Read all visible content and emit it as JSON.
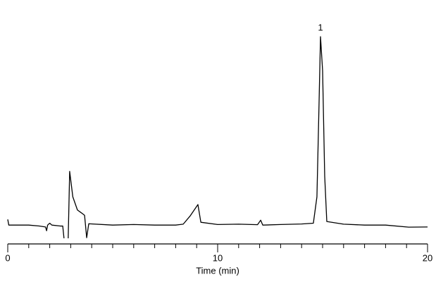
{
  "chart_data": {
    "type": "line",
    "x_label": "Time (min)",
    "xlim": [
      0,
      20
    ],
    "xticks": [
      0,
      10,
      20
    ],
    "xminorticks": [
      0,
      1,
      2,
      3,
      4,
      5,
      6,
      7,
      8,
      9,
      10,
      11,
      12,
      13,
      14,
      15,
      16,
      17,
      18,
      19,
      20
    ],
    "ylim": [
      -10,
      112
    ],
    "series": [
      {
        "color": "#000000",
        "x": [
          0,
          0.05,
          1,
          1.5,
          1.8,
          1.85,
          1.9,
          2.0,
          2.1,
          2.5,
          2.62,
          2.68,
          null,
          2.88,
          2.95,
          3.1,
          3.32,
          3.52,
          3.66,
          3.76,
          3.86,
          5,
          6,
          7,
          8,
          8.36,
          8.7,
          9.06,
          9.2,
          10,
          11,
          11.9,
          12.05,
          12.15,
          13,
          14,
          14.56,
          14.73,
          14.83,
          14.9,
          15.0,
          15.1,
          15.2,
          16,
          17,
          18,
          19.1,
          20
        ],
        "values": [
          3,
          0,
          0,
          -0.5,
          -1,
          -3,
          0,
          1,
          0,
          -0.5,
          -0.5,
          -7,
          null,
          -7,
          28.5,
          15,
          8,
          6.4,
          5.2,
          -6.7,
          0.7,
          0,
          0.3,
          0,
          0,
          0.5,
          5,
          10.9,
          1.5,
          0.3,
          0.5,
          0.2,
          2.6,
          0,
          0.3,
          0.6,
          1,
          15,
          64,
          100,
          82,
          26,
          1.9,
          0.5,
          0,
          0,
          -1.1,
          -1
        ]
      }
    ],
    "annotations": [
      {
        "text": "1",
        "x": 14.9,
        "y": 100
      }
    ]
  }
}
